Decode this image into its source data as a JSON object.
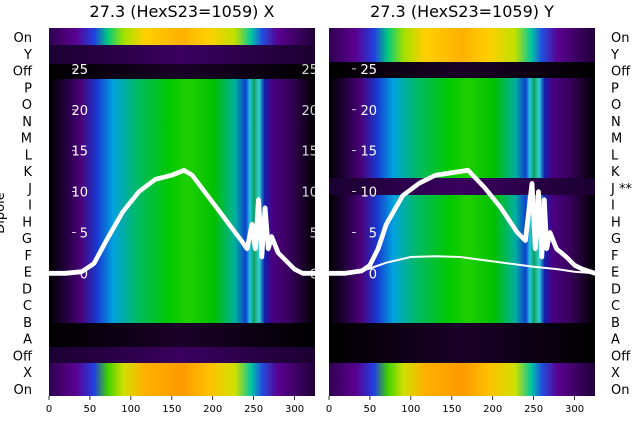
{
  "chart_data": {
    "type": "heatmap",
    "dipole_labels": [
      "On",
      "Y",
      "Off",
      "P",
      "O",
      "N",
      "M",
      "L",
      "K",
      "J",
      "I",
      "H",
      "G",
      "F",
      "E",
      "D",
      "C",
      "B",
      "A",
      "Off",
      "X",
      "On"
    ],
    "ylabel": "Dipole",
    "x_ticks": [
      0,
      50,
      100,
      150,
      200,
      250,
      300
    ],
    "xlim": [
      0,
      325
    ],
    "y_ticks": [
      0,
      5,
      10,
      15,
      20,
      25
    ],
    "ylim": [
      -15,
      30
    ],
    "colormap": [
      "#000000",
      "#2a0050",
      "#5a0090",
      "#1030d0",
      "#00a0e0",
      "#00c060",
      "#00d000",
      "#80e000",
      "#ffe000",
      "#ff9000"
    ],
    "panels": [
      {
        "title": "27.3 (HexS23=1059) X",
        "dipole_marks": [
          "",
          "",
          "",
          "",
          "",
          "",
          "",
          "",
          "",
          "",
          "",
          "",
          "",
          "",
          "",
          "",
          "",
          "",
          "",
          "",
          "",
          ""
        ],
        "series": [
          {
            "style": "thick",
            "x": [
              0,
              20,
              40,
              55,
              70,
              90,
              110,
              130,
              150,
              165,
              175,
              190,
              205,
              220,
              235,
              242,
              248,
              252,
              256,
              260,
              264,
              268,
              272,
              280,
              290,
              300,
              310,
              325
            ],
            "y": [
              0,
              0,
              0.2,
              1.2,
              4,
              7.5,
              10,
              11.5,
              12,
              12.6,
              12,
              10,
              8,
              6,
              4,
              3,
              6,
              3,
              9,
              2,
              8,
              3,
              4.5,
              2.5,
              1.5,
              0.5,
              0,
              0
            ]
          }
        ]
      },
      {
        "title": "27.3 (HexS23=1059) Y",
        "dipole_marks": [
          "",
          "",
          "",
          "",
          "",
          "",
          "",
          "",
          "",
          "**",
          "",
          "",
          "",
          "",
          "",
          "",
          "",
          "",
          "",
          "",
          "",
          ""
        ],
        "series": [
          {
            "style": "thick",
            "x": [
              0,
              20,
              40,
              50,
              60,
              70,
              90,
              110,
              130,
              150,
              170,
              190,
              210,
              230,
              240,
              248,
              252,
              256,
              260,
              263,
              266,
              270,
              278,
              290,
              300,
              310,
              325
            ],
            "y": [
              0,
              0,
              0.3,
              1,
              3,
              6,
              9.5,
              11,
              12,
              12.3,
              12.6,
              10.5,
              8,
              5,
              4,
              11,
              3,
              10,
              2,
              9,
              3,
              5,
              3,
              2,
              1,
              0.5,
              0
            ]
          },
          {
            "style": "thin",
            "x": [
              0,
              30,
              50,
              70,
              100,
              130,
              160,
              190,
              220,
              250,
              280,
              300,
              325
            ],
            "y": [
              0,
              0,
              0.6,
              1.3,
              2.0,
              2.1,
              2.0,
              1.6,
              1.2,
              0.8,
              0.5,
              0.2,
              0
            ]
          }
        ]
      }
    ]
  }
}
